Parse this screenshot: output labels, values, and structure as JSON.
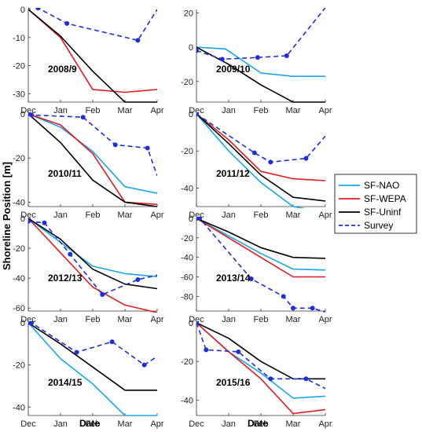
{
  "figure": {
    "ylabel": "Shoreline Position [m]",
    "xlabel": "Date",
    "months": [
      "Dec",
      "Jan",
      "Feb",
      "Mar",
      "Apr"
    ]
  },
  "legend": {
    "placement": "right",
    "entries": [
      {
        "name": "SF-NAO",
        "color": "#1aa7e6",
        "dash": false
      },
      {
        "name": "SF-WEPA",
        "color": "#e11b22",
        "dash": false
      },
      {
        "name": "SF-Uninf",
        "color": "#000000",
        "dash": false
      },
      {
        "name": "Survey",
        "color": "#1f2fd6",
        "dash": true,
        "marker": true
      }
    ]
  },
  "chart_data": [
    {
      "type": "line",
      "title": "2008/9",
      "ylim": [
        -33,
        0
      ],
      "yticks": [
        0,
        -10,
        -20,
        -30
      ],
      "series": [
        {
          "name": "SF-WEPA",
          "x": [
            0,
            1,
            2,
            3,
            4
          ],
          "y": [
            0,
            -10,
            -28.5,
            -29.5,
            -28.5
          ]
        },
        {
          "name": "SF-Uninf",
          "x": [
            0,
            1,
            2,
            3,
            4
          ],
          "y": [
            0,
            -9.5,
            -22,
            -33,
            -33
          ]
        },
        {
          "name": "Survey",
          "x": [
            0,
            0.3,
            1.2,
            3.4,
            4
          ],
          "y": [
            1,
            0.5,
            -5,
            -11,
            0
          ]
        }
      ]
    },
    {
      "type": "line",
      "title": "2009/10",
      "ylim": [
        -32,
        22
      ],
      "yticks": [
        20,
        0,
        -20
      ],
      "series": [
        {
          "name": "SF-NAO",
          "x": [
            0,
            0.9,
            2,
            3,
            4
          ],
          "y": [
            0,
            -1,
            -15,
            -17,
            -17
          ]
        },
        {
          "name": "SF-Uninf",
          "x": [
            0,
            1,
            2,
            3,
            4
          ],
          "y": [
            0,
            -10,
            -22,
            -32,
            -32
          ]
        },
        {
          "name": "Survey",
          "x": [
            0,
            0.8,
            1.9,
            2.8,
            4
          ],
          "y": [
            -2,
            -7,
            -6,
            -5,
            23
          ]
        }
      ]
    },
    {
      "type": "line",
      "title": "2010/11",
      "ylim": [
        -42,
        0
      ],
      "yticks": [
        0,
        -20,
        -40
      ],
      "series": [
        {
          "name": "SF-NAO",
          "x": [
            0,
            1,
            2,
            3,
            4
          ],
          "y": [
            0,
            -6,
            -17,
            -33,
            -36
          ]
        },
        {
          "name": "SF-WEPA",
          "x": [
            0,
            1,
            2,
            3,
            4
          ],
          "y": [
            0,
            -5,
            -18,
            -40,
            -41
          ]
        },
        {
          "name": "SF-Uninf",
          "x": [
            0,
            1,
            2,
            3,
            4
          ],
          "y": [
            0,
            -13,
            -30,
            -40,
            -42
          ]
        },
        {
          "name": "Survey",
          "x": [
            0,
            0.1,
            1.7,
            2.7,
            3.7,
            4
          ],
          "y": [
            0,
            -0.5,
            -1.5,
            -14,
            -15.5,
            -28
          ]
        }
      ]
    },
    {
      "type": "line",
      "title": "2011/12",
      "ylim": [
        -50,
        0
      ],
      "yticks": [
        0,
        -20,
        -40
      ],
      "series": [
        {
          "name": "SF-NAO",
          "x": [
            0,
            1,
            2,
            3,
            4
          ],
          "y": [
            0,
            -20,
            -37,
            -50,
            -53
          ]
        },
        {
          "name": "SF-WEPA",
          "x": [
            0,
            1,
            2,
            3,
            4
          ],
          "y": [
            0,
            -14,
            -31,
            -35,
            -36
          ]
        },
        {
          "name": "SF-Uninf",
          "x": [
            0,
            1,
            2,
            3,
            4
          ],
          "y": [
            0,
            -16,
            -33,
            -45,
            -47
          ]
        },
        {
          "name": "Survey",
          "x": [
            0,
            1.8,
            2.3,
            3.4,
            4
          ],
          "y": [
            0,
            -21,
            -26,
            -24,
            -12
          ]
        }
      ]
    },
    {
      "type": "line",
      "title": "2012/13",
      "ylim": [
        -62,
        0
      ],
      "yticks": [
        0,
        -20,
        -40,
        -60
      ],
      "series": [
        {
          "name": "SF-NAO",
          "x": [
            0,
            1,
            2,
            3,
            4
          ],
          "y": [
            0,
            -16,
            -32,
            -37,
            -39
          ]
        },
        {
          "name": "SF-WEPA",
          "x": [
            0,
            1,
            2,
            3,
            4
          ],
          "y": [
            0,
            -23,
            -46,
            -58,
            -63
          ]
        },
        {
          "name": "SF-Uninf",
          "x": [
            0,
            1,
            2,
            3,
            4
          ],
          "y": [
            0,
            -14,
            -34,
            -44,
            -47
          ]
        },
        {
          "name": "Survey",
          "x": [
            0,
            0.5,
            1.3,
            2.3,
            3.4,
            4
          ],
          "y": [
            -2,
            -3,
            -24,
            -51,
            -41,
            -38
          ]
        }
      ]
    },
    {
      "type": "line",
      "title": "2013/14",
      "ylim": [
        -95,
        0
      ],
      "yticks": [
        0,
        -20,
        -40,
        -60,
        -80
      ],
      "series": [
        {
          "name": "SF-NAO",
          "x": [
            0,
            1,
            2,
            3,
            4
          ],
          "y": [
            0,
            -18,
            -36,
            -52,
            -53
          ]
        },
        {
          "name": "SF-WEPA",
          "x": [
            0,
            1,
            2,
            3,
            4
          ],
          "y": [
            0,
            -20,
            -40,
            -60,
            -60
          ]
        },
        {
          "name": "SF-Uninf",
          "x": [
            0,
            1,
            2,
            3,
            4
          ],
          "y": [
            0,
            -14,
            -30,
            -40,
            -41
          ]
        },
        {
          "name": "Survey",
          "x": [
            0,
            0.1,
            1.7,
            2.7,
            3,
            3.6,
            4
          ],
          "y": [
            0,
            0,
            -62,
            -80,
            -92,
            -92,
            -96
          ]
        }
      ]
    },
    {
      "type": "line",
      "title": "2014/15",
      "ylim": [
        -44,
        0
      ],
      "yticks": [
        0,
        -20,
        -40
      ],
      "series": [
        {
          "name": "SF-NAO",
          "x": [
            0,
            1,
            2,
            3,
            4
          ],
          "y": [
            0,
            -17,
            -29,
            -44,
            -44
          ]
        },
        {
          "name": "SF-Uninf",
          "x": [
            0,
            1,
            2,
            3,
            4
          ],
          "y": [
            0,
            -10,
            -21,
            -32,
            -32
          ]
        },
        {
          "name": "Survey",
          "x": [
            0,
            0.1,
            1.5,
            2.6,
            3.6,
            4
          ],
          "y": [
            0,
            0,
            -14,
            -9,
            -20,
            -16
          ]
        }
      ]
    },
    {
      "type": "line",
      "title": "2015/16",
      "ylim": [
        -48,
        0
      ],
      "yticks": [
        0,
        -20,
        -40
      ],
      "series": [
        {
          "name": "SF-NAO",
          "x": [
            0,
            1,
            2,
            3,
            4
          ],
          "y": [
            0,
            -15,
            -26,
            -39,
            -38
          ]
        },
        {
          "name": "SF-WEPA",
          "x": [
            0,
            1,
            2,
            3,
            4
          ],
          "y": [
            0,
            -15,
            -29,
            -47,
            -45
          ]
        },
        {
          "name": "SF-Uninf",
          "x": [
            0,
            1,
            2,
            3,
            4
          ],
          "y": [
            0,
            -8,
            -20,
            -29,
            -29
          ]
        },
        {
          "name": "Survey",
          "x": [
            0,
            0.3,
            1.3,
            2.3,
            3.4,
            4
          ],
          "y": [
            0,
            -14,
            -15,
            -29,
            -29,
            -34
          ]
        }
      ]
    }
  ]
}
